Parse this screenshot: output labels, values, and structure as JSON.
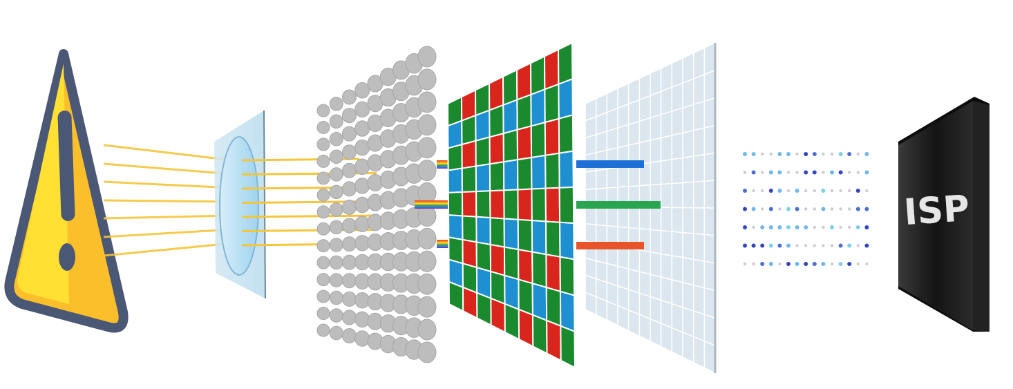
{
  "diagram": {
    "stages": [
      {
        "id": "subject",
        "icon": "warning-triangle-icon"
      },
      {
        "id": "lens",
        "icon": "lens-icon"
      },
      {
        "id": "microlens-array",
        "icon": "microlens-array-icon"
      },
      {
        "id": "color-filter-array",
        "icon": "bayer-filter-icon"
      },
      {
        "id": "photodiode-grid",
        "icon": "sensor-grid-icon"
      },
      {
        "id": "raw-data",
        "icon": "pixel-dots-icon"
      },
      {
        "id": "isp-chip",
        "icon": "chip-icon"
      }
    ],
    "chip": {
      "label": "ISP"
    }
  },
  "colors": {
    "warning_yellow_light": "#FFE033",
    "warning_yellow_dark": "#FBBF2C",
    "warning_outline": "#4A5775",
    "light_ray": "#F5C53A",
    "lens_fill": "#A9D8F2",
    "microlens": "#BDBDBD",
    "bayer_red": "#D9261C",
    "bayer_green": "#1B8A2E",
    "bayer_blue": "#1E90D2",
    "sensor_grid": "#C9D6E0",
    "signal_blue": "#1F6FD8",
    "signal_green": "#27A550",
    "signal_orange": "#E8552A",
    "chip_body": "#1A1A1A",
    "chip_label": "#E6E6E6"
  }
}
